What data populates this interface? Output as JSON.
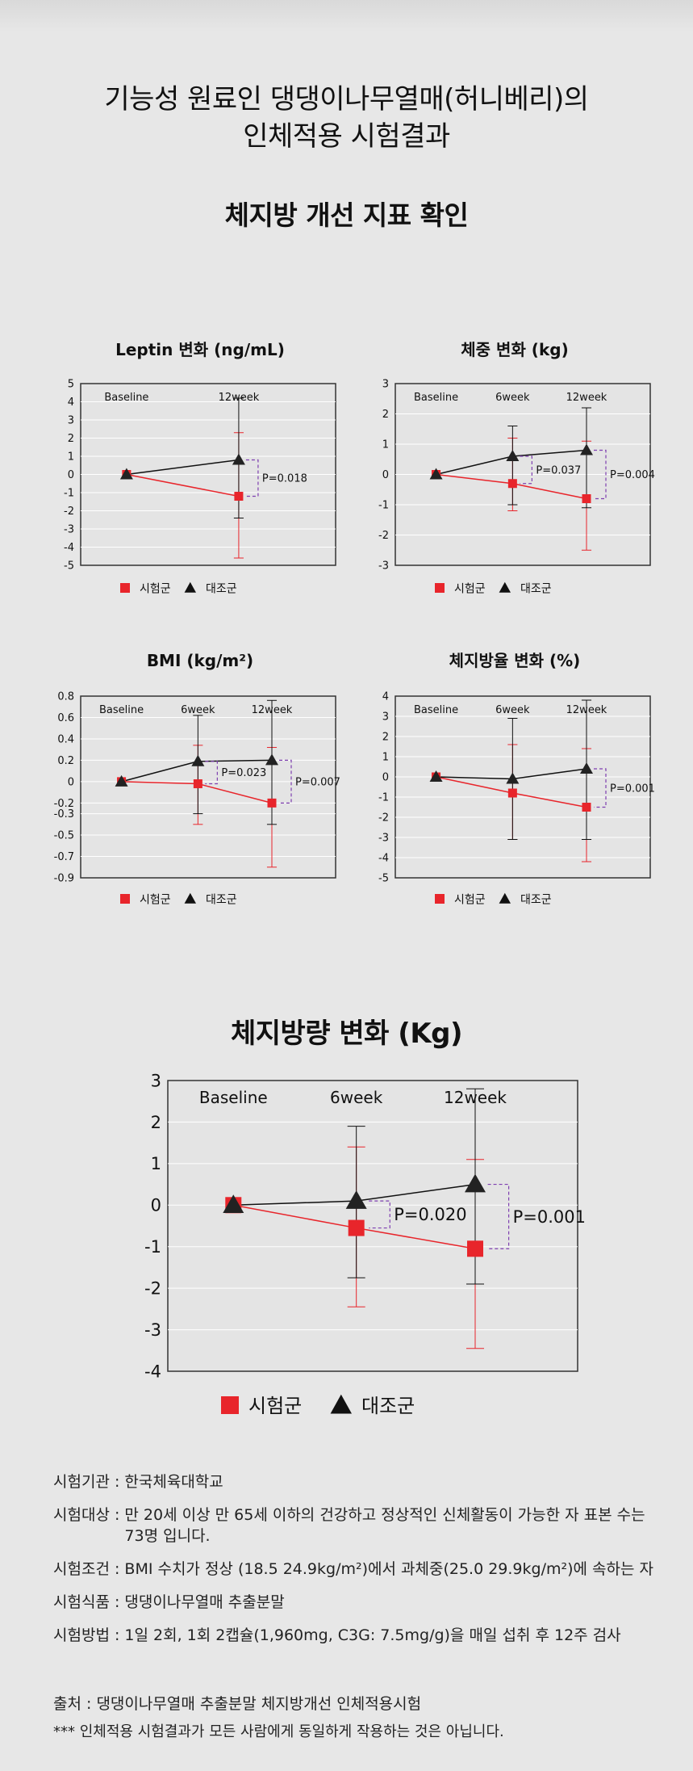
{
  "header": {
    "title_line1": "기능성 원료인 댕댕이나무열매(허니베리)의",
    "title_line2": "인체적용 시험결과",
    "section1": "체지방 개선 지표 확인",
    "section2": "체지방량 변화 (Kg)"
  },
  "legend": {
    "test": "시험군",
    "control": "대조군"
  },
  "colors": {
    "test": "#e8252b",
    "control": "#111111",
    "bracket": "#7e3fb0",
    "plot_bg": "#e4e4e4",
    "grid": "#ffffff"
  },
  "chart_data": [
    {
      "type": "line",
      "title": "Leptin 변화 (ng/mL)",
      "x": [
        "Baseline",
        "12week"
      ],
      "ylim": [
        -5,
        5
      ],
      "yticks": [
        5,
        4,
        3,
        2,
        1,
        0,
        -1,
        -2,
        -3,
        -4,
        -5
      ],
      "series": [
        {
          "name": "시험군",
          "values": [
            0,
            -1.2
          ],
          "err_low": [
            0,
            -4.6
          ],
          "err_high": [
            0,
            2.3
          ]
        },
        {
          "name": "대조군",
          "values": [
            0,
            0.8
          ],
          "err_low": [
            0,
            -2.4
          ],
          "err_high": [
            0,
            4.2
          ]
        }
      ],
      "annotations": [
        {
          "at": 1,
          "text": "P=0.018"
        }
      ]
    },
    {
      "type": "line",
      "title": "체중 변화 (kg)",
      "x": [
        "Baseline",
        "6week",
        "12week"
      ],
      "ylim": [
        -3,
        3
      ],
      "yticks": [
        3,
        2,
        1,
        0,
        -1,
        -2,
        -3
      ],
      "series": [
        {
          "name": "시험군",
          "values": [
            0,
            -0.3,
            -0.8
          ],
          "err_low": [
            0,
            -1.2,
            -2.5
          ],
          "err_high": [
            0,
            1.2,
            1.1
          ]
        },
        {
          "name": "대조군",
          "values": [
            0,
            0.6,
            0.8
          ],
          "err_low": [
            0,
            -1.0,
            -1.1
          ],
          "err_high": [
            0,
            1.6,
            2.2
          ]
        }
      ],
      "annotations": [
        {
          "at": 1,
          "text": "P=0.037"
        },
        {
          "at": 2,
          "text": "P=0.004"
        }
      ]
    },
    {
      "type": "line",
      "title": "BMI (kg/m²)",
      "x": [
        "Baseline",
        "6week",
        "12week"
      ],
      "ylim": [
        -0.9,
        0.8
      ],
      "yticks": [
        0.8,
        0.6,
        0.4,
        0.2,
        0,
        -0.2,
        -0.3,
        -0.5,
        -0.7,
        -0.9
      ],
      "series": [
        {
          "name": "시험군",
          "values": [
            0,
            -0.02,
            -0.2
          ],
          "err_low": [
            0,
            -0.4,
            -0.8
          ],
          "err_high": [
            0,
            0.34,
            0.32
          ]
        },
        {
          "name": "대조군",
          "values": [
            0,
            0.19,
            0.2
          ],
          "err_low": [
            0,
            -0.3,
            -0.4
          ],
          "err_high": [
            0,
            0.62,
            0.76
          ]
        }
      ],
      "annotations": [
        {
          "at": 1,
          "text": "P=0.023"
        },
        {
          "at": 2,
          "text": "P=0.007"
        }
      ]
    },
    {
      "type": "line",
      "title": "체지방율 변화 (%)",
      "x": [
        "Baseline",
        "6week",
        "12week"
      ],
      "ylim": [
        -5,
        4
      ],
      "yticks": [
        4,
        3,
        2,
        1,
        0,
        -1,
        -2,
        -3,
        -4,
        -5
      ],
      "series": [
        {
          "name": "시험군",
          "values": [
            0,
            -0.8,
            -1.5
          ],
          "err_low": [
            0,
            -3.1,
            -4.2
          ],
          "err_high": [
            0,
            1.6,
            1.4
          ]
        },
        {
          "name": "대조군",
          "values": [
            0,
            -0.1,
            0.4
          ],
          "err_low": [
            0,
            -3.1,
            -3.1
          ],
          "err_high": [
            0,
            2.9,
            3.8
          ]
        }
      ],
      "annotations": [
        {
          "at": 2,
          "text": "P=0.001"
        }
      ]
    },
    {
      "type": "line",
      "title": "",
      "x": [
        "Baseline",
        "6week",
        "12week"
      ],
      "ylim": [
        -4,
        3
      ],
      "yticks": [
        3,
        2,
        1,
        0,
        -1,
        -2,
        -3,
        -4
      ],
      "series": [
        {
          "name": "시험군",
          "values": [
            0,
            -0.55,
            -1.05
          ],
          "err_low": [
            0,
            -2.45,
            -3.45
          ],
          "err_high": [
            0,
            1.4,
            1.1
          ]
        },
        {
          "name": "대조군",
          "values": [
            0,
            0.1,
            0.5
          ],
          "err_low": [
            0,
            -1.75,
            -1.9
          ],
          "err_high": [
            0,
            1.9,
            2.8
          ]
        }
      ],
      "annotations": [
        {
          "at": 1,
          "text": "P=0.020"
        },
        {
          "at": 2,
          "text": "P=0.001"
        }
      ]
    }
  ],
  "info": [
    {
      "label": "시험기관",
      "text": "한국체육대학교"
    },
    {
      "label": "시험대상",
      "text": "만 20세 이상 만 65세 이하의 건강하고 정상적인 신체활동이 가능한 자 표본 수는 73명 입니다."
    },
    {
      "label": "시험조건",
      "text": "BMI 수치가 정상 (18.5 24.9kg/m²)에서 과체중(25.0 29.9kg/m²)에 속하는 자"
    },
    {
      "label": "시험식품",
      "text": "댕댕이나무열매 추출분말"
    },
    {
      "label": "시험방법",
      "text": "1일 2회, 1회 2캡슐(1,960mg, C3G: 7.5mg/g)을 매일 섭취 후 12주 검사"
    }
  ],
  "footer": {
    "source": "출처 : 댕댕이나무열매 추출분말 체지방개선 인체적용시험",
    "note": "*** 인체적용 시험결과가 모든 사람에게 동일하게 작용하는 것은 아닙니다."
  }
}
